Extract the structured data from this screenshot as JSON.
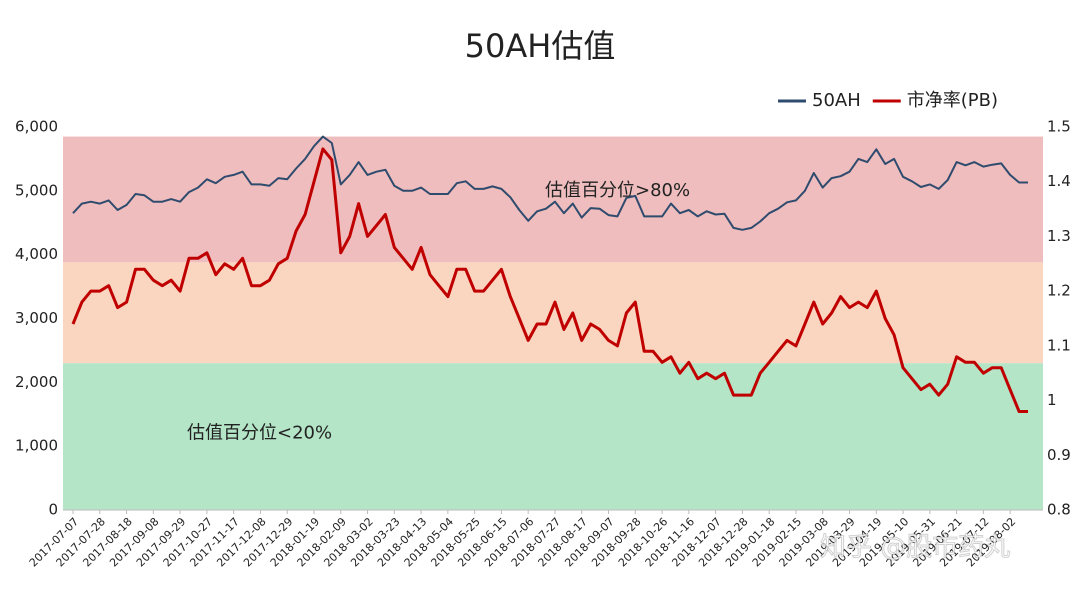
{
  "chart_data": {
    "type": "line",
    "title": "50AH估值",
    "categories": [
      "2017-07-07",
      null,
      null,
      "2017-07-28",
      null,
      null,
      "2017-08-18",
      null,
      null,
      "2017-09-08",
      null,
      null,
      "2017-09-29",
      null,
      null,
      "2017-10-27",
      null,
      null,
      "2017-11-17",
      null,
      null,
      "2017-12-08",
      null,
      null,
      "2017-12-29",
      null,
      null,
      "2018-01-19",
      null,
      null,
      "2018-02-09",
      null,
      null,
      "2018-03-02",
      null,
      null,
      "2018-03-23",
      null,
      null,
      "2018-04-13",
      null,
      null,
      "2018-05-04",
      null,
      null,
      "2018-05-25",
      null,
      null,
      "2018-06-15",
      null,
      null,
      "2018-07-06",
      null,
      null,
      "2018-07-27",
      null,
      null,
      "2018-08-17",
      null,
      null,
      "2018-09-07",
      null,
      null,
      "2018-09-28",
      null,
      null,
      "2018-10-26",
      null,
      null,
      "2018-11-16",
      null,
      null,
      "2018-12-07",
      null,
      null,
      "2018-12-28",
      null,
      null,
      "2019-01-18",
      null,
      null,
      "2019-02-15",
      null,
      null,
      "2019-03-08",
      null,
      null,
      "2019-03-29",
      null,
      null,
      "2019-04-19",
      null,
      null,
      "2019-05-10",
      null,
      null,
      "2019-05-31",
      null,
      null,
      "2019-06-21",
      null,
      null,
      "2019-07-12",
      null,
      null,
      "2019-08-02",
      null,
      null
    ],
    "series": [
      {
        "name": "50AH",
        "color": "#2f4b6e",
        "axis": "y",
        "values": [
          4650,
          4800,
          4830,
          4800,
          4850,
          4700,
          4780,
          4950,
          4930,
          4830,
          4830,
          4870,
          4830,
          4980,
          5050,
          5180,
          5120,
          5220,
          5250,
          5300,
          5100,
          5100,
          5080,
          5200,
          5180,
          5350,
          5500,
          5700,
          5850,
          5750,
          5100,
          5250,
          5450,
          5250,
          5300,
          5330,
          5080,
          5000,
          5000,
          5050,
          4950,
          4950,
          4950,
          5120,
          5150,
          5030,
          5030,
          5070,
          5030,
          4900,
          4700,
          4530,
          4680,
          4720,
          4830,
          4650,
          4800,
          4580,
          4730,
          4720,
          4620,
          4600,
          4890,
          4920,
          4600,
          4600,
          4600,
          4800,
          4650,
          4700,
          4600,
          4680,
          4630,
          4640,
          4420,
          4390,
          4420,
          4520,
          4650,
          4720,
          4820,
          4850,
          5000,
          5280,
          5050,
          5200,
          5230,
          5300,
          5500,
          5450,
          5650,
          5420,
          5500,
          5220,
          5150,
          5060,
          5100,
          5030,
          5170,
          5450,
          5400,
          5450,
          5380,
          5410,
          5430,
          5250,
          5130,
          5130
        ]
      },
      {
        "name": "市净率(PB)",
        "color": "#c00000",
        "axis": "y2",
        "values": [
          1.14,
          1.18,
          1.2,
          1.2,
          1.21,
          1.17,
          1.18,
          1.24,
          1.24,
          1.22,
          1.21,
          1.22,
          1.2,
          1.26,
          1.26,
          1.27,
          1.23,
          1.25,
          1.24,
          1.26,
          1.21,
          1.21,
          1.22,
          1.25,
          1.26,
          1.31,
          1.34,
          1.4,
          1.46,
          1.44,
          1.27,
          1.3,
          1.36,
          1.3,
          1.32,
          1.34,
          1.28,
          1.26,
          1.24,
          1.28,
          1.23,
          1.21,
          1.19,
          1.24,
          1.24,
          1.2,
          1.2,
          1.22,
          1.24,
          1.19,
          1.15,
          1.11,
          1.14,
          1.14,
          1.18,
          1.13,
          1.16,
          1.11,
          1.14,
          1.13,
          1.11,
          1.1,
          1.16,
          1.18,
          1.09,
          1.09,
          1.07,
          1.08,
          1.05,
          1.07,
          1.04,
          1.05,
          1.04,
          1.05,
          1.01,
          1.01,
          1.01,
          1.05,
          1.07,
          1.09,
          1.11,
          1.1,
          1.14,
          1.18,
          1.14,
          1.16,
          1.19,
          1.17,
          1.18,
          1.17,
          1.2,
          1.15,
          1.12,
          1.06,
          1.04,
          1.02,
          1.03,
          1.01,
          1.03,
          1.08,
          1.07,
          1.07,
          1.05,
          1.06,
          1.06,
          1.02,
          0.98,
          0.98
        ]
      }
    ],
    "ylim": [
      0,
      6000
    ],
    "yticks": [
      0,
      {
        "value": 1000,
        "label": "1,000"
      },
      {
        "value": 2000,
        "label": "2,000"
      },
      {
        "value": 3000,
        "label": "3,000"
      },
      {
        "value": 4000,
        "label": "4,000"
      },
      {
        "value": 5000,
        "label": "5,000"
      },
      {
        "value": 6000,
        "label": "6,000"
      }
    ],
    "y2lim": [
      0.8,
      1.5
    ],
    "y2ticks": [
      0.8,
      0.9,
      1,
      1.1,
      1.2,
      1.3,
      1.4,
      1.5
    ],
    "bands": [
      {
        "from": 3880,
        "to": 5850,
        "color": "#efbdbd"
      },
      {
        "from": 2300,
        "to": 3880,
        "color": "#fad5bf"
      },
      {
        "from": 0,
        "to": 2300,
        "color": "#b4e5c7"
      }
    ],
    "annotations": [
      {
        "text": "估值百分位>80%",
        "value": 5000
      },
      {
        "text": "估值百分位<20%",
        "value": 1200
      }
    ],
    "legend": "top-right",
    "watermark": "知乎 @股市药丸"
  }
}
